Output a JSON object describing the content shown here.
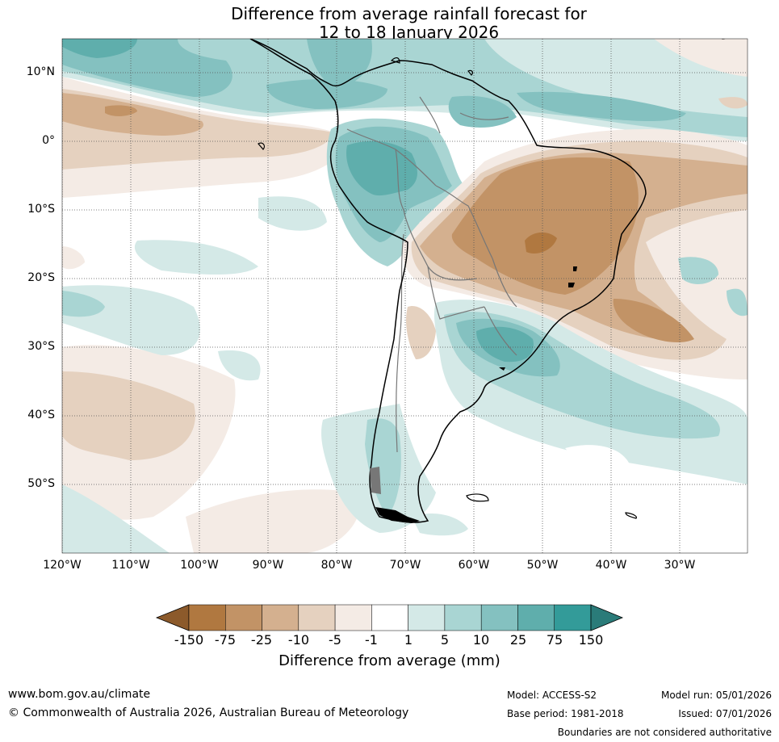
{
  "title": {
    "line1": "Difference from average rainfall forecast for",
    "line2": "12 to 18 January 2026"
  },
  "map": {
    "lat_ticks": [
      "10°N",
      "0°",
      "10°S",
      "20°S",
      "30°S",
      "40°S",
      "50°S"
    ],
    "lon_ticks": [
      "120°W",
      "110°W",
      "100°W",
      "90°W",
      "80°W",
      "70°W",
      "60°W",
      "50°W",
      "40°W",
      "30°W"
    ],
    "lon_range": [
      -120,
      -20
    ],
    "lat_range": [
      -60,
      15
    ],
    "region": "South America"
  },
  "legend": {
    "levels": [
      "-150",
      "-75",
      "-25",
      "-10",
      "-5",
      "-1",
      "1",
      "5",
      "10",
      "25",
      "75",
      "150"
    ],
    "colors": [
      "#8c5a2b",
      "#b07840",
      "#c29366",
      "#d4b08f",
      "#e5d1bf",
      "#f4ebe5",
      "#ffffff",
      "#d4e9e7",
      "#a9d5d3",
      "#84c1c0",
      "#5faeac",
      "#339b99",
      "#2a7b79"
    ],
    "title": "Difference from average (mm)"
  },
  "footer": {
    "url": "www.bom.gov.au/climate",
    "copyright": "© Commonwealth of Australia 2026, Australian Bureau of Meteorology",
    "model": "Model: ACCESS-S2",
    "base_period": "Base period: 1981-2018",
    "model_run": "Model run: 05/01/2026",
    "issued": "Issued: 07/01/2026",
    "disclaimer": "Boundaries are not considered authoritative"
  }
}
